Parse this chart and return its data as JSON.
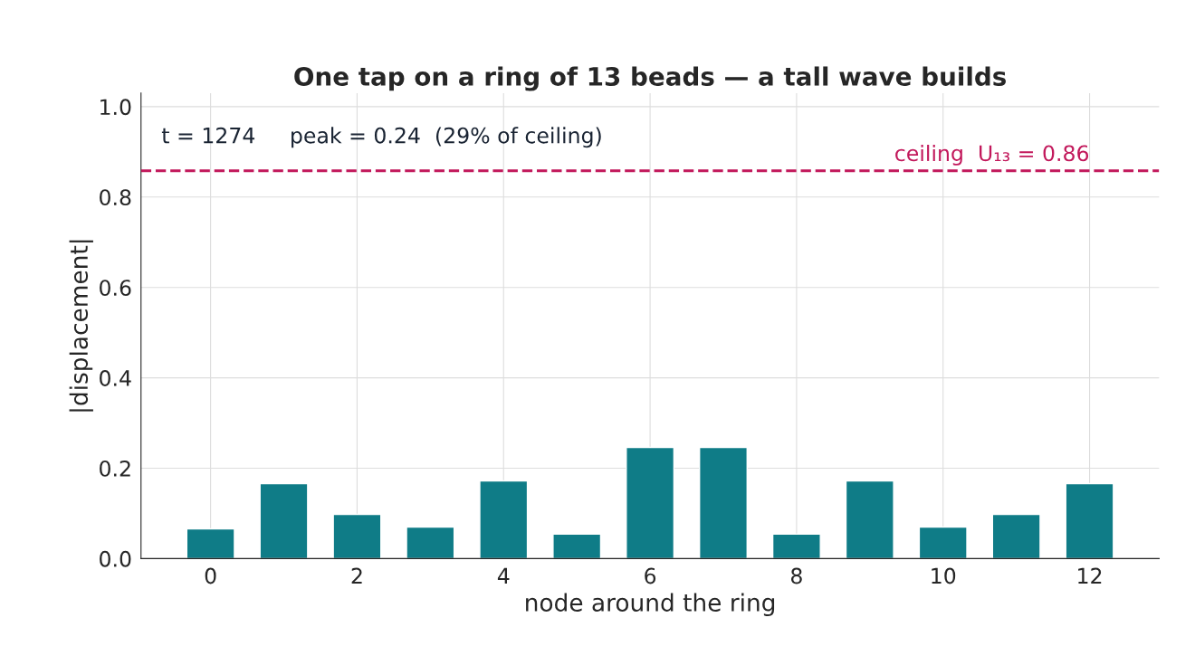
{
  "chart_data": {
    "type": "bar",
    "title": "One tap on a ring of 13 beads — a tall wave builds",
    "xlabel": "node around the ring",
    "ylabel": "|displacement|",
    "x": [
      0,
      1,
      2,
      3,
      4,
      5,
      6,
      7,
      8,
      9,
      10,
      11,
      12
    ],
    "values": [
      0.066,
      0.166,
      0.098,
      0.07,
      0.172,
      0.054,
      0.246,
      0.246,
      0.054,
      0.172,
      0.07,
      0.098,
      0.166
    ],
    "color": "#0f7c87",
    "xlim": [
      -0.95,
      12.95
    ],
    "xticks": [
      0,
      2,
      4,
      6,
      8,
      10,
      12
    ],
    "ylim": [
      0,
      1.03
    ],
    "yticks": [
      {
        "value": 0,
        "label": "0.0"
      },
      0.2,
      0.4,
      0.6,
      0.8,
      {
        "value": 1,
        "label": "1.0"
      }
    ],
    "grid": true,
    "ref_lines": [
      {
        "axis": "y",
        "value": 0.858,
        "label": "ceiling  U₁₃ = 0.86",
        "color": "#c2185b",
        "line_style": "dashed"
      }
    ],
    "annotations": [
      "t = 1274     peak = 0.24  (29% of ceiling)"
    ]
  }
}
